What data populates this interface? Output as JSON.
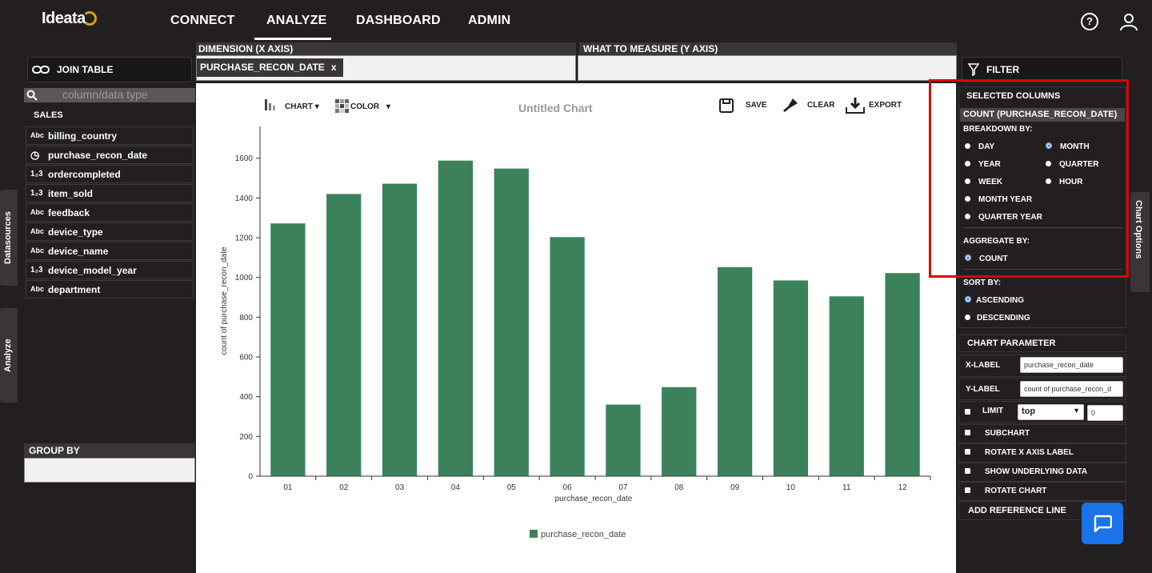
{
  "app": {
    "logo_text": "Ideata"
  },
  "nav": {
    "items": [
      "CONNECT",
      "ANALYZE",
      "DASHBOARD",
      "ADMIN"
    ],
    "active": "ANALYZE"
  },
  "left": {
    "join_table": "JOIN TABLE",
    "search_placeholder": "column/data type",
    "datasource_name": "SALES",
    "fields": [
      {
        "name": "billing_country",
        "type": "abc"
      },
      {
        "name": "purchase_recon_date",
        "type": "date"
      },
      {
        "name": "ordercompleted",
        "type": "123"
      },
      {
        "name": "item_sold",
        "type": "123"
      },
      {
        "name": "feedback",
        "type": "abc"
      },
      {
        "name": "device_type",
        "type": "abc"
      },
      {
        "name": "device_name",
        "type": "abc"
      },
      {
        "name": "device_model_year",
        "type": "123"
      },
      {
        "name": "department",
        "type": "abc"
      }
    ],
    "tab_datasources": "Datasources",
    "tab_analyze": "Analyze",
    "group_by": "GROUP BY"
  },
  "center": {
    "dimension_header": "DIMENSION (X AXIS)",
    "measure_header": "WHAT TO MEASURE (Y AXIS)",
    "dimension_chip": "PURCHASE_RECON_DATE",
    "chip_close": "x",
    "toolbar": {
      "chart": "CHART",
      "color": "COLOR",
      "save": "SAVE",
      "clear": "CLEAR",
      "export": "EXPORT"
    },
    "chart_title": "Untitled Chart"
  },
  "chart_data": {
    "type": "bar",
    "categories": [
      "01",
      "02",
      "03",
      "04",
      "05",
      "06",
      "07",
      "08",
      "09",
      "10",
      "11",
      "12"
    ],
    "values": [
      1272,
      1420,
      1472,
      1588,
      1548,
      1203,
      360,
      448,
      1052,
      985,
      905,
      1022
    ],
    "xlabel": "purchase_recon_date",
    "ylabel": "count of purchase_recon_date",
    "ylim": [
      0,
      1760
    ],
    "yticks": [
      0,
      200,
      400,
      600,
      800,
      1000,
      1200,
      1400,
      1600
    ],
    "legend": "purchase_recon_date",
    "color": "#3b825a"
  },
  "right": {
    "filter": "FILTER",
    "selected_columns": "SELECTED COLUMNS",
    "count_label": "COUNT (PURCHASE_RECON_DATE)",
    "breakdown_by": "BREAKDOWN BY:",
    "breakdown_options": [
      "DAY",
      "MONTH",
      "YEAR",
      "QUARTER",
      "WEEK",
      "HOUR",
      "MONTH YEAR",
      "QUARTER YEAR"
    ],
    "breakdown_selected": "MONTH",
    "aggregate_by": "AGGREGATE BY:",
    "aggregate_option": "COUNT",
    "sort_by": "SORT BY:",
    "sort_options": [
      "ASCENDING",
      "DESCENDING"
    ],
    "sort_selected": "ASCENDING",
    "chart_options_tab": "Chart Options",
    "chart_parameter": "CHART PARAMETER",
    "x_label_caption": "X-LABEL",
    "x_label_value": "purchase_recon_date",
    "y_label_caption": "Y-LABEL",
    "y_label_value": "count of purchase_recon_d",
    "limit_caption": "LIMIT",
    "limit_select": "top",
    "limit_value": "0",
    "subchart": "SUBCHART",
    "rotate_x": "ROTATE X AXIS LABEL",
    "show_underlying": "SHOW UNDERLYING DATA",
    "rotate_chart": "ROTATE CHART",
    "add_reference": "ADD REFERENCE LINE"
  }
}
